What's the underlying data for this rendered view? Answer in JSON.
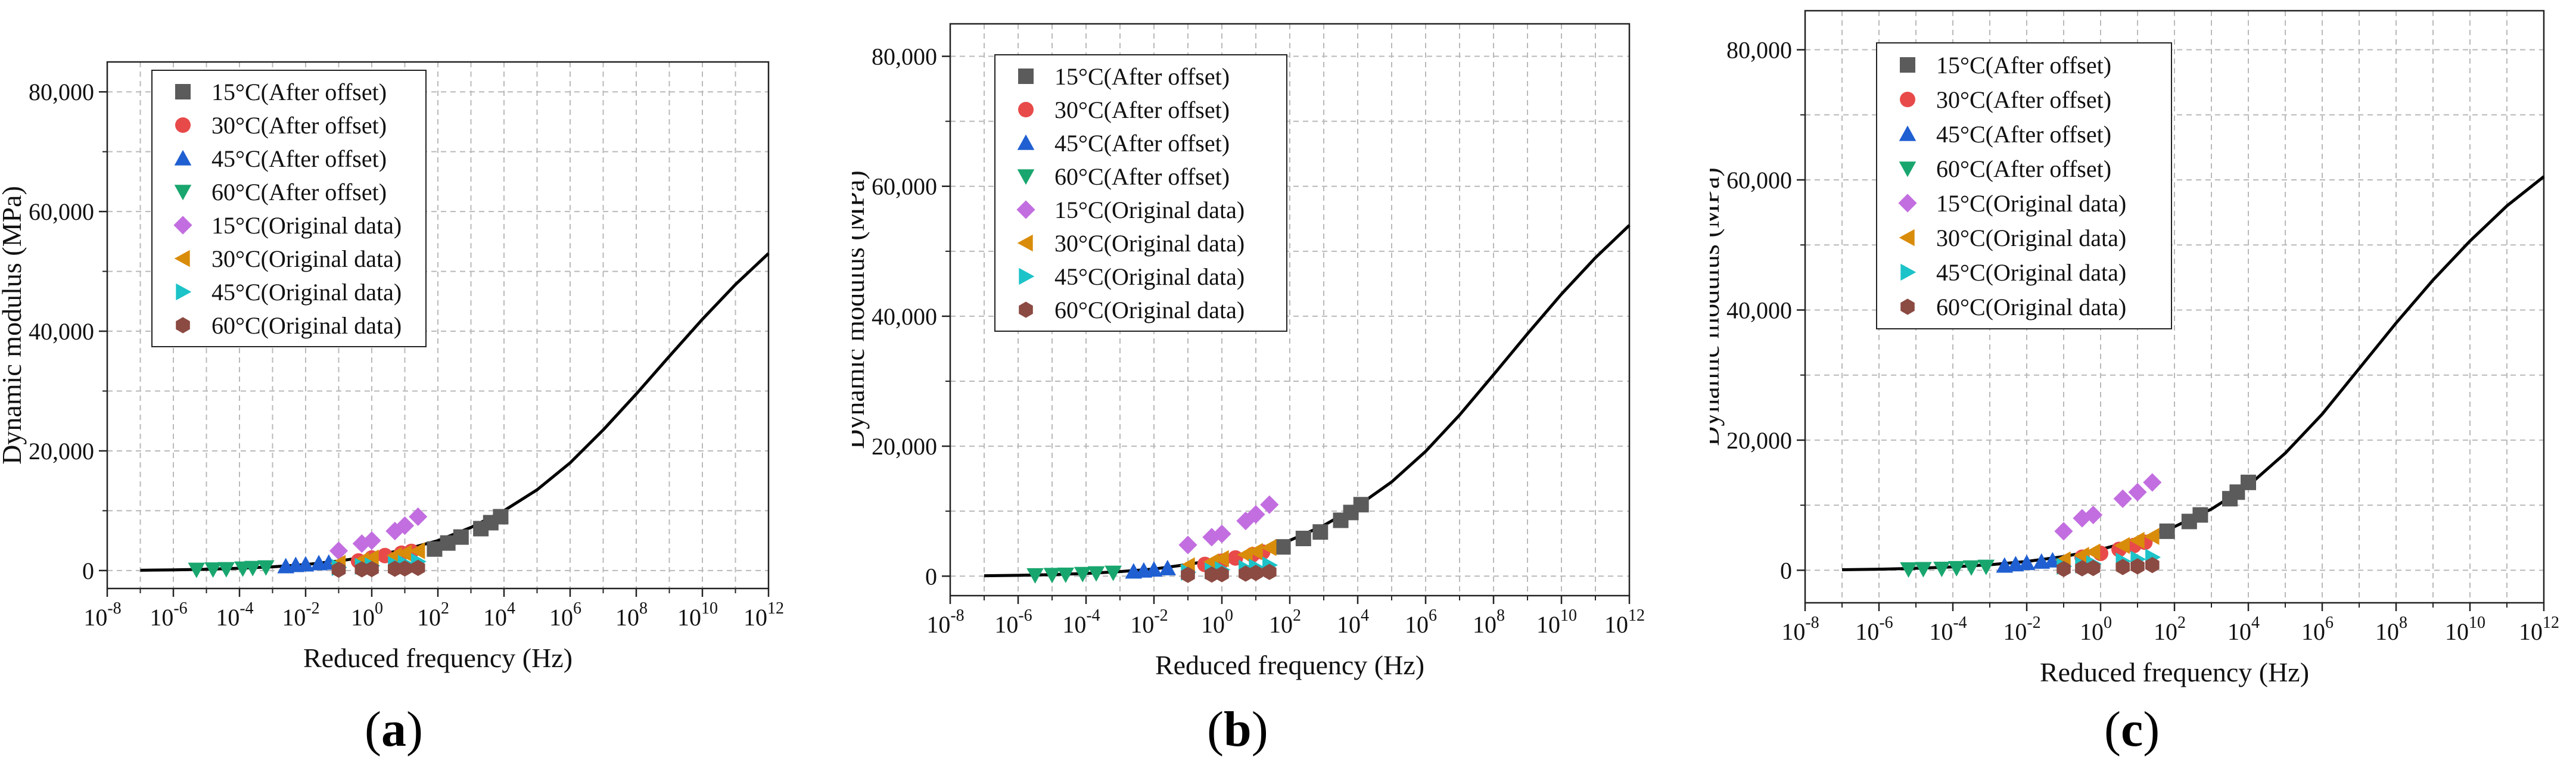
{
  "chart_data": [
    {
      "panel": "a",
      "type": "scatter",
      "xlabel": "Reduced frequency (Hz)",
      "ylabel": "Dynamic modulus (MPa)",
      "xscale": "log",
      "xlim_exp": [
        -8,
        12
      ],
      "xtick_exps": [
        -8,
        -6,
        -4,
        -2,
        0,
        2,
        4,
        6,
        8,
        10,
        12
      ],
      "ylim": [
        -3000,
        85000
      ],
      "yticks": [
        0,
        20000,
        40000,
        60000,
        80000
      ],
      "ytick_labels": [
        "0",
        "20,000",
        "40,000",
        "60,000",
        "80,000"
      ],
      "grid": true,
      "legend_position": "top-left",
      "series": [
        {
          "name": "15°C(After offset)",
          "marker": "square",
          "color": "#5b5b5b",
          "points": [
            [
              1.9,
              3600
            ],
            [
              2.3,
              4600
            ],
            [
              2.7,
              5600
            ],
            [
              3.3,
              7000
            ],
            [
              3.6,
              8000
            ],
            [
              3.9,
              9000
            ]
          ]
        },
        {
          "name": "30°C(After offset)",
          "marker": "circle",
          "color": "#e84a4a",
          "points": [
            [
              -0.4,
              1600
            ],
            [
              0.0,
              2100
            ],
            [
              0.4,
              2500
            ],
            [
              0.9,
              2900
            ],
            [
              1.2,
              3200
            ]
          ]
        },
        {
          "name": "45°C(After offset)",
          "marker": "triangle-up",
          "color": "#1f5fd1",
          "points": [
            [
              -2.6,
              700
            ],
            [
              -2.3,
              900
            ],
            [
              -2.0,
              1000
            ],
            [
              -1.6,
              1200
            ],
            [
              -1.3,
              1300
            ]
          ]
        },
        {
          "name": "60°C(After offset)",
          "marker": "triangle-down",
          "color": "#19a66e",
          "points": [
            [
              -5.3,
              150
            ],
            [
              -4.8,
              200
            ],
            [
              -4.4,
              250
            ],
            [
              -3.9,
              350
            ],
            [
              -3.6,
              450
            ],
            [
              -3.2,
              550
            ]
          ]
        },
        {
          "name": "15°C(Original data)",
          "marker": "diamond",
          "color": "#c26ee0",
          "points": [
            [
              -1.0,
              3300
            ],
            [
              -0.3,
              4500
            ],
            [
              0.0,
              5000
            ],
            [
              0.7,
              6600
            ],
            [
              1.0,
              7500
            ],
            [
              1.4,
              9000
            ]
          ]
        },
        {
          "name": "30°C(Original data)",
          "marker": "triangle-left",
          "color": "#d98c0a",
          "points": [
            [
              -1.0,
              1200
            ],
            [
              -0.3,
              1700
            ],
            [
              0.0,
              2100
            ],
            [
              0.7,
              2500
            ],
            [
              1.0,
              2900
            ],
            [
              1.4,
              3300
            ]
          ]
        },
        {
          "name": "45°C(Original data)",
          "marker": "triangle-right",
          "color": "#1cc3c8",
          "points": [
            [
              -1.0,
              500
            ],
            [
              -0.3,
              700
            ],
            [
              0.0,
              800
            ],
            [
              0.7,
              1000
            ],
            [
              1.0,
              1200
            ],
            [
              1.4,
              1500
            ]
          ]
        },
        {
          "name": "60°C(Original data)",
          "marker": "hexagon",
          "color": "#8b4a42",
          "points": [
            [
              -1.0,
              150
            ],
            [
              -0.3,
              200
            ],
            [
              0.0,
              250
            ],
            [
              0.7,
              300
            ],
            [
              1.0,
              350
            ],
            [
              1.4,
              450
            ]
          ]
        }
      ],
      "fit_curve": {
        "points": [
          [
            -7,
            50
          ],
          [
            -6,
            120
          ],
          [
            -5,
            220
          ],
          [
            -4,
            380
          ],
          [
            -3,
            620
          ],
          [
            -2,
            1000
          ],
          [
            -1,
            1600
          ],
          [
            0,
            2400
          ],
          [
            1,
            3500
          ],
          [
            2,
            5000
          ],
          [
            3,
            7200
          ],
          [
            4,
            10000
          ],
          [
            5,
            13500
          ],
          [
            6,
            18000
          ],
          [
            7,
            23500
          ],
          [
            8,
            29500
          ],
          [
            9,
            35800
          ],
          [
            10,
            42000
          ],
          [
            11,
            47800
          ],
          [
            12,
            53000
          ]
        ]
      }
    },
    {
      "panel": "b",
      "type": "scatter",
      "xlabel": "Reduced frequency (Hz)",
      "ylabel": "Dynamic modulus (MPa)",
      "xscale": "log",
      "xlim_exp": [
        -8,
        12
      ],
      "xtick_exps": [
        -8,
        -6,
        -4,
        -2,
        0,
        2,
        4,
        6,
        8,
        10,
        12
      ],
      "ylim": [
        -3000,
        85000
      ],
      "yticks": [
        0,
        20000,
        40000,
        60000,
        80000
      ],
      "ytick_labels": [
        "0",
        "20,000",
        "40,000",
        "60,000",
        "80,000"
      ],
      "grid": true,
      "legend_position": "top-left",
      "series": [
        {
          "name": "15°C(After offset)",
          "marker": "square",
          "color": "#5b5b5b",
          "points": [
            [
              1.8,
              4500
            ],
            [
              2.4,
              5800
            ],
            [
              2.9,
              6800
            ],
            [
              3.5,
              8600
            ],
            [
              3.8,
              9800
            ],
            [
              4.1,
              11000
            ]
          ]
        },
        {
          "name": "30°C(After offset)",
          "marker": "circle",
          "color": "#e84a4a",
          "points": [
            [
              -0.5,
              1800
            ],
            [
              0.0,
              2300
            ],
            [
              0.4,
              2800
            ],
            [
              0.9,
              3300
            ],
            [
              1.2,
              3700
            ]
          ]
        },
        {
          "name": "45°C(After offset)",
          "marker": "triangle-up",
          "color": "#1f5fd1",
          "points": [
            [
              -2.6,
              700
            ],
            [
              -2.3,
              850
            ],
            [
              -2.0,
              1000
            ],
            [
              -1.6,
              1200
            ]
          ]
        },
        {
          "name": "60°C(After offset)",
          "marker": "triangle-down",
          "color": "#19a66e",
          "points": [
            [
              -5.5,
              150
            ],
            [
              -5.0,
              200
            ],
            [
              -4.6,
              250
            ],
            [
              -4.1,
              350
            ],
            [
              -3.7,
              450
            ],
            [
              -3.2,
              550
            ]
          ]
        },
        {
          "name": "15°C(Original data)",
          "marker": "diamond",
          "color": "#c26ee0",
          "points": [
            [
              -1.0,
              4800
            ],
            [
              -0.3,
              6000
            ],
            [
              0.0,
              6500
            ],
            [
              0.7,
              8500
            ],
            [
              1.0,
              9500
            ],
            [
              1.4,
              11000
            ]
          ]
        },
        {
          "name": "30°C(Original data)",
          "marker": "triangle-left",
          "color": "#d98c0a",
          "points": [
            [
              -1.0,
              1600
            ],
            [
              -0.3,
              2200
            ],
            [
              0.0,
              2700
            ],
            [
              0.7,
              3300
            ],
            [
              1.0,
              3800
            ],
            [
              1.4,
              4400
            ]
          ]
        },
        {
          "name": "45°C(Original data)",
          "marker": "triangle-right",
          "color": "#1cc3c8",
          "points": [
            [
              -1.0,
              600
            ],
            [
              -0.3,
              800
            ],
            [
              0.0,
              1000
            ],
            [
              0.7,
              1200
            ],
            [
              1.0,
              1400
            ],
            [
              1.4,
              1700
            ]
          ]
        },
        {
          "name": "60°C(Original data)",
          "marker": "hexagon",
          "color": "#8b4a42",
          "points": [
            [
              -1.0,
              200
            ],
            [
              -0.3,
              250
            ],
            [
              0.0,
              300
            ],
            [
              0.7,
              400
            ],
            [
              1.0,
              500
            ],
            [
              1.4,
              650
            ]
          ]
        }
      ],
      "fit_curve": {
        "points": [
          [
            -7,
            60
          ],
          [
            -6,
            130
          ],
          [
            -5,
            240
          ],
          [
            -4,
            420
          ],
          [
            -3,
            700
          ],
          [
            -2,
            1100
          ],
          [
            -1,
            1800
          ],
          [
            0,
            2700
          ],
          [
            1,
            3900
          ],
          [
            2,
            5500
          ],
          [
            3,
            7800
          ],
          [
            4,
            10800
          ],
          [
            5,
            14500
          ],
          [
            6,
            19200
          ],
          [
            7,
            24800
          ],
          [
            8,
            31000
          ],
          [
            9,
            37300
          ],
          [
            10,
            43400
          ],
          [
            11,
            49000
          ],
          [
            12,
            54000
          ]
        ]
      }
    },
    {
      "panel": "c",
      "type": "scatter",
      "xlabel": "Reduced frequency (Hz)",
      "ylabel": "Dynamic modulus (MPa)",
      "xscale": "log",
      "xlim_exp": [
        -8,
        12
      ],
      "xtick_exps": [
        -8,
        -6,
        -4,
        -2,
        0,
        2,
        4,
        6,
        8,
        10,
        12
      ],
      "ylim": [
        -5000,
        86000
      ],
      "yticks": [
        0,
        20000,
        40000,
        60000,
        80000
      ],
      "ytick_labels": [
        "0",
        "20,000",
        "40,000",
        "60,000",
        "80,000"
      ],
      "grid": true,
      "legend_position": "top-left",
      "series": [
        {
          "name": "15°C(After offset)",
          "marker": "square",
          "color": "#5b5b5b",
          "points": [
            [
              1.8,
              6000
            ],
            [
              2.4,
              7500
            ],
            [
              2.7,
              8500
            ],
            [
              3.5,
              11000
            ],
            [
              3.7,
              12000
            ],
            [
              4.0,
              13500
            ]
          ]
        },
        {
          "name": "30°C(After offset)",
          "marker": "circle",
          "color": "#e84a4a",
          "points": [
            [
              -0.5,
              2000
            ],
            [
              0.0,
              2600
            ],
            [
              0.5,
              3200
            ],
            [
              0.9,
              3800
            ],
            [
              1.2,
              4300
            ]
          ]
        },
        {
          "name": "45°C(After offset)",
          "marker": "triangle-up",
          "color": "#1f5fd1",
          "points": [
            [
              -2.6,
              700
            ],
            [
              -2.3,
              900
            ],
            [
              -2.0,
              1100
            ],
            [
              -1.6,
              1300
            ],
            [
              -1.3,
              1500
            ]
          ]
        },
        {
          "name": "60°C(After offset)",
          "marker": "triangle-down",
          "color": "#19a66e",
          "points": [
            [
              -5.2,
              150
            ],
            [
              -4.8,
              200
            ],
            [
              -4.3,
              250
            ],
            [
              -3.9,
              350
            ],
            [
              -3.5,
              450
            ],
            [
              -3.1,
              550
            ]
          ]
        },
        {
          "name": "15°C(Original data)",
          "marker": "diamond",
          "color": "#c26ee0",
          "points": [
            [
              -1.0,
              6000
            ],
            [
              -0.5,
              8000
            ],
            [
              -0.2,
              8500
            ],
            [
              0.6,
              11000
            ],
            [
              1.0,
              12000
            ],
            [
              1.4,
              13500
            ]
          ]
        },
        {
          "name": "30°C(Original data)",
          "marker": "triangle-left",
          "color": "#d98c0a",
          "points": [
            [
              -1.0,
              1600
            ],
            [
              -0.5,
              2300
            ],
            [
              -0.2,
              2800
            ],
            [
              0.6,
              3800
            ],
            [
              1.0,
              4600
            ],
            [
              1.4,
              5200
            ]
          ]
        },
        {
          "name": "45°C(Original data)",
          "marker": "triangle-right",
          "color": "#1cc3c8",
          "points": [
            [
              -1.0,
              600
            ],
            [
              -0.5,
              800
            ],
            [
              -0.2,
              1000
            ],
            [
              0.6,
              1400
            ],
            [
              1.0,
              1700
            ],
            [
              1.4,
              2000
            ]
          ]
        },
        {
          "name": "60°C(Original data)",
          "marker": "hexagon",
          "color": "#8b4a42",
          "points": [
            [
              -1.0,
              200
            ],
            [
              -0.5,
              300
            ],
            [
              -0.2,
              350
            ],
            [
              0.6,
              500
            ],
            [
              1.0,
              600
            ],
            [
              1.4,
              800
            ]
          ]
        }
      ],
      "fit_curve": {
        "points": [
          [
            -7,
            80
          ],
          [
            -6,
            160
          ],
          [
            -5,
            300
          ],
          [
            -4,
            520
          ],
          [
            -3,
            850
          ],
          [
            -2,
            1350
          ],
          [
            -1,
            2100
          ],
          [
            0,
            3200
          ],
          [
            1,
            4700
          ],
          [
            2,
            6700
          ],
          [
            3,
            9400
          ],
          [
            4,
            13000
          ],
          [
            5,
            18000
          ],
          [
            6,
            24000
          ],
          [
            7,
            31000
          ],
          [
            8,
            38000
          ],
          [
            9,
            44600
          ],
          [
            10,
            50600
          ],
          [
            11,
            56000
          ],
          [
            12,
            60500
          ]
        ]
      }
    }
  ],
  "panel_labels": [
    {
      "open": "(",
      "letter": "a",
      "close": ")"
    },
    {
      "open": "(",
      "letter": "b",
      "close": ")"
    },
    {
      "open": "(",
      "letter": "c",
      "close": ")"
    }
  ]
}
